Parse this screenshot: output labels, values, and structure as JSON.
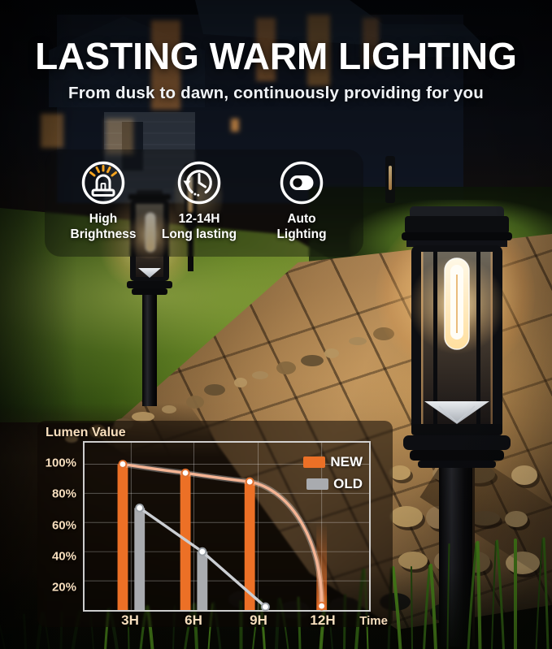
{
  "header": {
    "title": "LASTING WARM LIGHTING",
    "subtitle": "From dusk to dawn, continuously providing for you"
  },
  "features": [
    {
      "icon": "beacon-light-icon",
      "line1": "High",
      "line2": "Brightness"
    },
    {
      "icon": "history-clock-icon",
      "line1": "12-14H",
      "line2": "Long lasting"
    },
    {
      "icon": "auto-toggle-icon",
      "line1": "Auto",
      "line2": "Lighting"
    }
  ],
  "chart_data": {
    "type": "bar+line",
    "title": "Lumen Value",
    "xlabel": "Time",
    "categories": [
      "3H",
      "6H",
      "9H",
      "12H"
    ],
    "y_tick_labels": [
      "100%",
      "80%",
      "60%",
      "40%",
      "20%"
    ],
    "ylim": [
      0,
      115
    ],
    "grid": true,
    "legend_position": "top-right",
    "series": [
      {
        "name": "NEW",
        "color": "#EC7026",
        "line_color": "#F4B494",
        "bar_values": [
          100,
          94,
          88,
          60
        ],
        "last_bar_faded": true,
        "line_values": [
          100,
          94,
          88,
          1
        ]
      },
      {
        "name": "OLD",
        "color": "#A9ABAF",
        "line_color": "#CBCED3",
        "bar_values": [
          70,
          40,
          null,
          null
        ],
        "line_values": [
          70,
          40,
          0,
          null
        ]
      }
    ]
  },
  "colors": {
    "accent_orange": "#EC7026",
    "swatch_gray": "#A9ABAF",
    "axis_text_cream": "#F8DFBE",
    "legend_text": "#FFFFFF",
    "ray_orange": "#F5A31F",
    "panel_overlay": "rgba(12,8,4,0.55)"
  }
}
